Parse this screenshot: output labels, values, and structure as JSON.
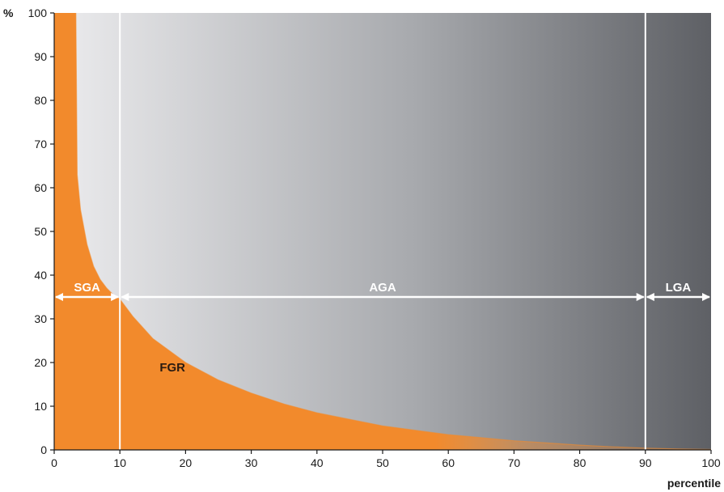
{
  "chart_data": {
    "type": "area",
    "xlabel": "percentile",
    "ylabel": "%",
    "xlim": [
      0,
      100
    ],
    "ylim": [
      0,
      100
    ],
    "xticks": [
      0,
      10,
      20,
      30,
      40,
      50,
      60,
      70,
      80,
      90,
      100
    ],
    "yticks": [
      0,
      10,
      20,
      30,
      40,
      50,
      60,
      70,
      80,
      90,
      100
    ],
    "grid": false,
    "series": [
      {
        "name": "FGR",
        "x": [
          3.3,
          3.5,
          4,
          5,
          6,
          7,
          8,
          9,
          10,
          12,
          15,
          20,
          25,
          30,
          35,
          40,
          45,
          50,
          55,
          60,
          65,
          70,
          75,
          80,
          85,
          90,
          95,
          100
        ],
        "values": [
          100,
          63,
          55,
          47,
          42,
          39,
          37,
          35.5,
          34.5,
          30.5,
          25.5,
          20,
          16,
          13,
          10.5,
          8.5,
          7,
          5.5,
          4.5,
          3.5,
          2.8,
          2.1,
          1.6,
          1.1,
          0.7,
          0.4,
          0.2,
          0.1
        ],
        "color": "#f28a2c"
      }
    ],
    "regions": [
      {
        "label": "SGA",
        "range": [
          0,
          10
        ]
      },
      {
        "label": "AGA",
        "range": [
          10,
          90
        ]
      },
      {
        "label": "LGA",
        "range": [
          90,
          100
        ]
      }
    ],
    "reference_lines": [
      10,
      90
    ],
    "arrow_level": 35,
    "annotations": [
      {
        "text": "FGR",
        "x": 18,
        "y": 18
      }
    ],
    "colors": {
      "fgr_fill": "#f28a2c",
      "background_light": "#ececee",
      "background_mid": "#a7a9ad",
      "background_dark": "#5e6065",
      "reference_line": "#ffffff",
      "arrow": "#ffffff"
    }
  }
}
